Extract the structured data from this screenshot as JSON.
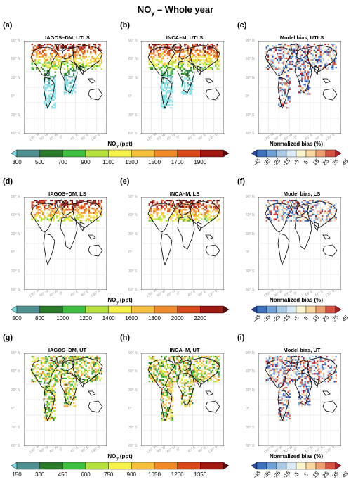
{
  "figure": {
    "title_main": "NO",
    "title_sub": "y",
    "title_rest": " – Whole year"
  },
  "rows": [
    {
      "panels": [
        {
          "label": "(a)",
          "title": "IAGOS–DM, UTLS",
          "kind": "obs"
        },
        {
          "label": "(b)",
          "title": "INCA–M, UTLS",
          "kind": "model"
        },
        {
          "label": "(c)",
          "title": "Model bias, UTLS",
          "kind": "bias"
        }
      ],
      "colorbar": {
        "title_a": "NO",
        "title_sub": "y",
        "title_b": " (ppt)",
        "ticks": [
          "300",
          "500",
          "700",
          "900",
          "1100",
          "1300",
          "1500",
          "1700",
          "1900"
        ]
      }
    },
    {
      "panels": [
        {
          "label": "(d)",
          "title": "IAGOS–DM, LS",
          "kind": "obs"
        },
        {
          "label": "(e)",
          "title": "INCA–M, LS",
          "kind": "model"
        },
        {
          "label": "(f)",
          "title": "Model bias, LS",
          "kind": "bias"
        }
      ],
      "colorbar": {
        "title_a": "NO",
        "title_sub": "y",
        "title_b": " (ppt)",
        "ticks": [
          "500",
          "800",
          "1000",
          "1200",
          "1400",
          "1600",
          "1800",
          "2000",
          "2200"
        ]
      }
    },
    {
      "panels": [
        {
          "label": "(g)",
          "title": "IAGOS–DM, UT",
          "kind": "obs"
        },
        {
          "label": "(h)",
          "title": "INCA–M, UT",
          "kind": "model"
        },
        {
          "label": "(i)",
          "title": "Model bias, UT",
          "kind": "bias"
        }
      ],
      "colorbar": {
        "title_a": "NO",
        "title_sub": "y",
        "title_b": " (ppt)",
        "ticks": [
          "150",
          "300",
          "450",
          "600",
          "750",
          "900",
          "1050",
          "1200",
          "1350"
        ]
      }
    }
  ],
  "bias_colorbar": {
    "title": "Normalized bias (%)",
    "ticks": [
      "-45",
      "-35",
      "-25",
      "-15",
      "-5",
      "5",
      "15",
      "25",
      "35",
      "45"
    ]
  },
  "lat_labels": [
    "90° N",
    "60° N",
    "30° N",
    "0°",
    "30° S",
    "60° S"
  ],
  "lon_labels": [
    "135° W",
    "90° W",
    "45° W",
    "0°",
    "45° E",
    "90° E",
    "135° E"
  ],
  "colors": {
    "conc": [
      "#7fe0e6",
      "#4f8f8f",
      "#2b7a2b",
      "#3fbf3f",
      "#b5e040",
      "#f5f04a",
      "#f5c040",
      "#f08a2a",
      "#d84a1a",
      "#a01a14",
      "#5a0808"
    ],
    "bias": [
      "#2b4aa0",
      "#3f73c0",
      "#6fa0d8",
      "#a8c8e8",
      "#d8e8f5",
      "#fbf6d0",
      "#f8d8a0",
      "#f0a070",
      "#d85040",
      "#b01c28"
    ]
  }
}
